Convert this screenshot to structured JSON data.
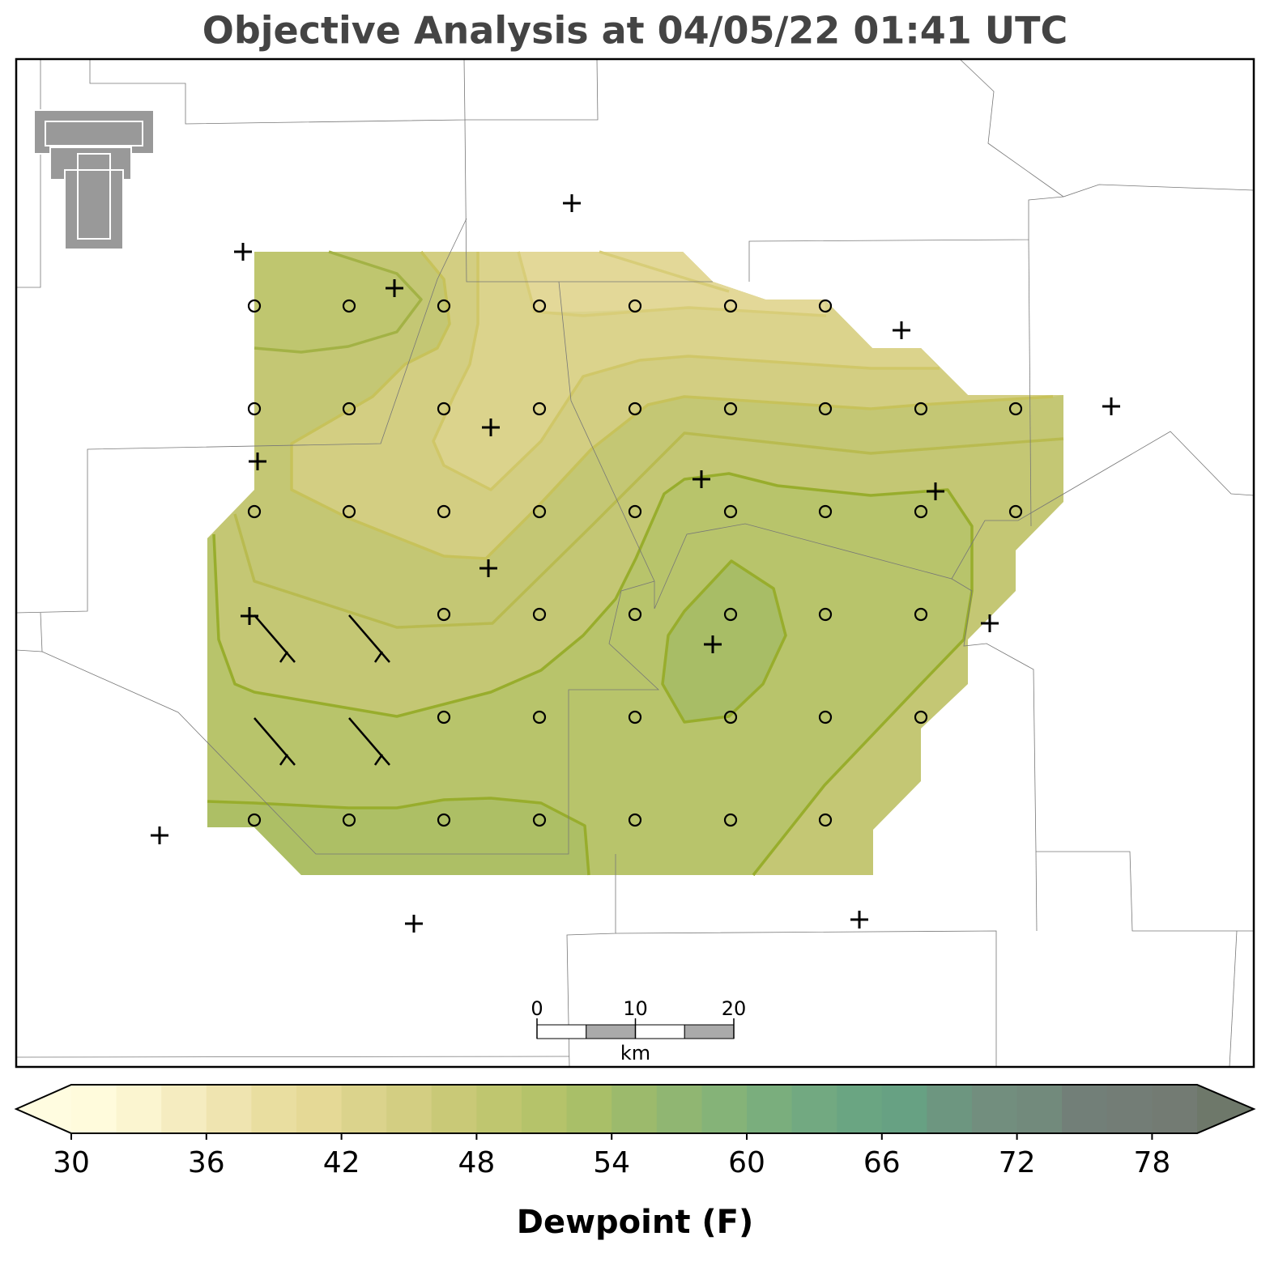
{
  "title": "Objective Analysis at 04/05/22 01:41 UTC",
  "colorbar": {
    "label": "Dewpoint (F)",
    "lim": [
      30,
      80
    ],
    "ticks": [
      30,
      36,
      42,
      48,
      54,
      60,
      66,
      72,
      78
    ],
    "extend": "both",
    "under_color": "#fffce0",
    "over_color": "#6e786a",
    "colors": [
      "#fffbdc",
      "#fbf5d0",
      "#f5ecc0",
      "#efe4b0",
      "#e9dea0",
      "#e5d996",
      "#dbd38c",
      "#d3ce82",
      "#c9c977",
      "#bfc66f",
      "#b5c36a",
      "#a9bf68",
      "#9cba6c",
      "#90b672",
      "#85b378",
      "#7aae7d",
      "#72a981",
      "#6aa582",
      "#67a183",
      "#6d9680",
      "#728e7e",
      "#728a7c",
      "#727f78",
      "#737d76",
      "#737b73"
    ]
  },
  "scale_bar": {
    "ticks": [
      0,
      10,
      20
    ],
    "unit": "km"
  }
}
